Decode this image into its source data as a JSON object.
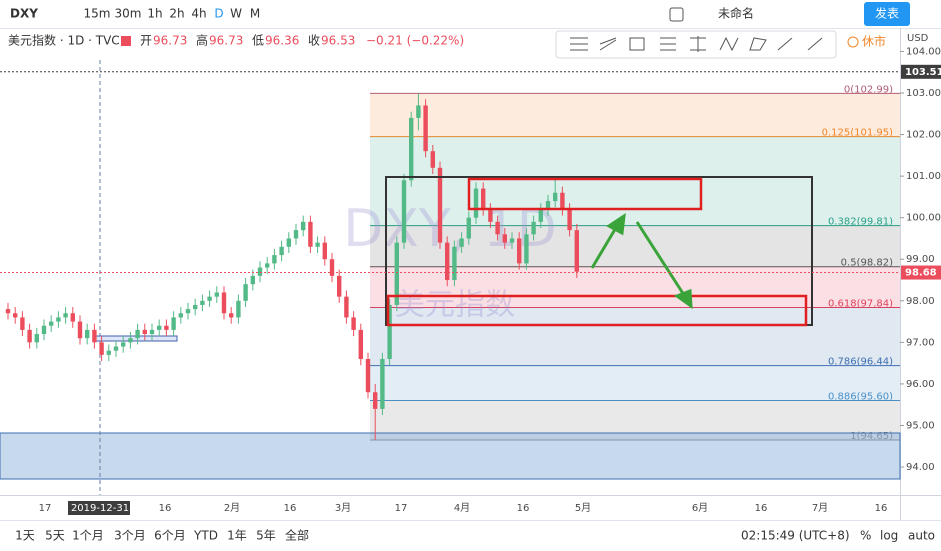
{
  "toolbar": {
    "symbol": "DXY",
    "intervals": [
      "15m",
      "30m",
      "1h",
      "2h",
      "4h",
      "D",
      "W",
      "M"
    ],
    "layout_name": "未命名",
    "publish": "发表"
  },
  "legend": {
    "name": "美元指数 · 1D · TVC",
    "ohlc": [
      {
        "label": "开",
        "value": "96.73"
      },
      {
        "label": "高",
        "value": "96.73"
      },
      {
        "label": "低",
        "value": "96.36"
      },
      {
        "label": "收",
        "value": "96.53"
      }
    ],
    "change": "−0.21 (−0.22%)",
    "status": "休市"
  },
  "chart": {
    "currency": "USD",
    "watermark": "DXY, 1D",
    "watermark_name": "美元指数",
    "up_color": "#53b987",
    "down_color": "#eb4d5c",
    "price_ticks": [
      {
        "value": 104,
        "label": "104.00"
      },
      {
        "value": 103,
        "label": "103.00"
      },
      {
        "value": 102,
        "label": "102.00"
      },
      {
        "value": 101,
        "label": "101.00"
      },
      {
        "value": 100,
        "label": "100.00"
      },
      {
        "value": 99,
        "label": "99.00"
      },
      {
        "value": 98,
        "label": "98.00"
      },
      {
        "value": 97,
        "label": "97.00"
      },
      {
        "value": 96,
        "label": "96.00"
      },
      {
        "value": 95,
        "label": "95.00"
      },
      {
        "value": 94,
        "label": "94.00"
      }
    ],
    "price_tags": [
      {
        "value": 103.51,
        "label": "103.51",
        "color": "#3d3d3d"
      },
      {
        "value": 98.68,
        "label": "98.68",
        "color": "#eb4d5c"
      }
    ],
    "date_labels": [
      "17",
      "2019-12-31",
      "16",
      "2月",
      "16",
      "3月",
      "17",
      "4月",
      "16",
      "5月",
      "6月",
      "16",
      "7月",
      "16"
    ],
    "fib": [
      {
        "label": "0(102.99)",
        "value": 102.99,
        "color": "#b05d7b"
      },
      {
        "label": "0.125(101.95)",
        "value": 101.95,
        "color": "#f0862a"
      },
      {
        "label": "0.382(99.81)",
        "value": 99.81,
        "color": "#29a18a"
      },
      {
        "label": "0.5(98.82)",
        "value": 98.82,
        "color": "#555555"
      },
      {
        "label": "0.618(97.84)",
        "value": 97.84,
        "color": "#e0415b"
      },
      {
        "label": "0.786(96.44)",
        "value": 96.44,
        "color": "#3e6fb0"
      },
      {
        "label": "0.886(95.60)",
        "value": 95.6,
        "color": "#4a90c8"
      },
      {
        "label": "1(94.65)",
        "value": 94.65,
        "color": "#777777"
      }
    ],
    "candles": [
      [
        97.8,
        97.95,
        97.55,
        97.7
      ],
      [
        97.7,
        97.85,
        97.45,
        97.6
      ],
      [
        97.6,
        97.75,
        97.15,
        97.3
      ],
      [
        97.3,
        97.45,
        96.85,
        97.0
      ],
      [
        97.0,
        97.35,
        96.85,
        97.2
      ],
      [
        97.2,
        97.55,
        97.05,
        97.4
      ],
      [
        97.4,
        97.65,
        97.25,
        97.5
      ],
      [
        97.5,
        97.75,
        97.35,
        97.6
      ],
      [
        97.6,
        97.85,
        97.45,
        97.7
      ],
      [
        97.7,
        97.85,
        97.35,
        97.5
      ],
      [
        97.5,
        97.65,
        96.95,
        97.1
      ],
      [
        97.1,
        97.45,
        96.95,
        97.3
      ],
      [
        97.3,
        97.45,
        96.85,
        97.0
      ],
      [
        97.0,
        97.15,
        96.55,
        96.7
      ],
      [
        96.7,
        96.95,
        96.55,
        96.8
      ],
      [
        96.8,
        97.05,
        96.65,
        96.9
      ],
      [
        96.9,
        97.15,
        96.75,
        97.0
      ],
      [
        97.0,
        97.25,
        96.85,
        97.1
      ],
      [
        97.1,
        97.45,
        96.95,
        97.3
      ],
      [
        97.3,
        97.45,
        97.05,
        97.2
      ],
      [
        97.2,
        97.45,
        97.05,
        97.3
      ],
      [
        97.3,
        97.55,
        97.15,
        97.4
      ],
      [
        97.4,
        97.55,
        97.15,
        97.3
      ],
      [
        97.3,
        97.75,
        97.15,
        97.6
      ],
      [
        97.6,
        97.85,
        97.45,
        97.7
      ],
      [
        97.7,
        97.95,
        97.55,
        97.8
      ],
      [
        97.8,
        98.05,
        97.65,
        97.9
      ],
      [
        97.9,
        98.15,
        97.75,
        98.0
      ],
      [
        98.0,
        98.25,
        97.85,
        98.1
      ],
      [
        98.1,
        98.35,
        97.95,
        98.2
      ],
      [
        98.2,
        98.35,
        97.55,
        97.7
      ],
      [
        97.7,
        97.85,
        97.45,
        97.6
      ],
      [
        97.6,
        98.15,
        97.45,
        98.0
      ],
      [
        98.0,
        98.55,
        97.85,
        98.4
      ],
      [
        98.4,
        98.75,
        98.25,
        98.6
      ],
      [
        98.6,
        98.95,
        98.45,
        98.8
      ],
      [
        98.8,
        99.05,
        98.65,
        98.9
      ],
      [
        98.9,
        99.25,
        98.75,
        99.1
      ],
      [
        99.1,
        99.45,
        98.95,
        99.3
      ],
      [
        99.3,
        99.65,
        99.15,
        99.5
      ],
      [
        99.5,
        99.85,
        99.35,
        99.7
      ],
      [
        99.7,
        100.05,
        99.55,
        99.9
      ],
      [
        99.9,
        100.05,
        99.15,
        99.3
      ],
      [
        99.3,
        99.55,
        99.15,
        99.4
      ],
      [
        99.4,
        99.55,
        98.85,
        99.0
      ],
      [
        99.0,
        99.15,
        98.45,
        98.6
      ],
      [
        98.6,
        98.75,
        97.95,
        98.1
      ],
      [
        98.1,
        98.25,
        97.45,
        97.6
      ],
      [
        97.6,
        97.75,
        97.15,
        97.3
      ],
      [
        97.3,
        97.45,
        96.45,
        96.6
      ],
      [
        96.6,
        96.75,
        95.65,
        95.8
      ],
      [
        95.8,
        96.0,
        94.65,
        95.4
      ],
      [
        95.4,
        96.75,
        95.25,
        96.6
      ],
      [
        96.6,
        98.05,
        96.45,
        97.9
      ],
      [
        97.9,
        99.55,
        97.75,
        99.4
      ],
      [
        99.4,
        101.05,
        99.25,
        100.9
      ],
      [
        100.9,
        102.55,
        100.75,
        102.4
      ],
      [
        102.4,
        102.99,
        102.1,
        102.7
      ],
      [
        102.7,
        102.85,
        101.45,
        101.6
      ],
      [
        101.6,
        101.75,
        101.05,
        101.2
      ],
      [
        101.2,
        101.35,
        99.25,
        99.4
      ],
      [
        99.4,
        99.55,
        98.35,
        98.5
      ],
      [
        98.5,
        99.45,
        98.35,
        99.3
      ],
      [
        99.3,
        99.65,
        99.15,
        99.5
      ],
      [
        99.5,
        100.15,
        99.35,
        100.0
      ],
      [
        100.0,
        100.85,
        99.85,
        100.7
      ],
      [
        100.7,
        100.85,
        100.05,
        100.2
      ],
      [
        100.2,
        100.35,
        99.75,
        99.9
      ],
      [
        99.9,
        100.05,
        99.45,
        99.6
      ],
      [
        99.6,
        99.75,
        99.25,
        99.4
      ],
      [
        99.4,
        99.65,
        99.25,
        99.5
      ],
      [
        99.5,
        99.65,
        98.75,
        98.9
      ],
      [
        98.9,
        99.75,
        98.75,
        99.6
      ],
      [
        99.6,
        100.05,
        99.45,
        99.9
      ],
      [
        99.9,
        100.35,
        99.75,
        100.2
      ],
      [
        100.2,
        100.55,
        100.05,
        100.4
      ],
      [
        100.4,
        100.95,
        100.25,
        100.6
      ],
      [
        100.6,
        100.75,
        100.05,
        100.2
      ],
      [
        100.2,
        100.35,
        99.55,
        99.7
      ],
      [
        99.7,
        99.85,
        98.55,
        98.7
      ]
    ]
  },
  "bottom_bar": {
    "ranges": [
      "1天",
      "5天",
      "1个月",
      "3个月",
      "6个月",
      "YTD",
      "1年",
      "5年",
      "全部"
    ],
    "time": "02:15:49 (UTC+8)",
    "percent": "%",
    "log": "log",
    "auto": "auto"
  }
}
